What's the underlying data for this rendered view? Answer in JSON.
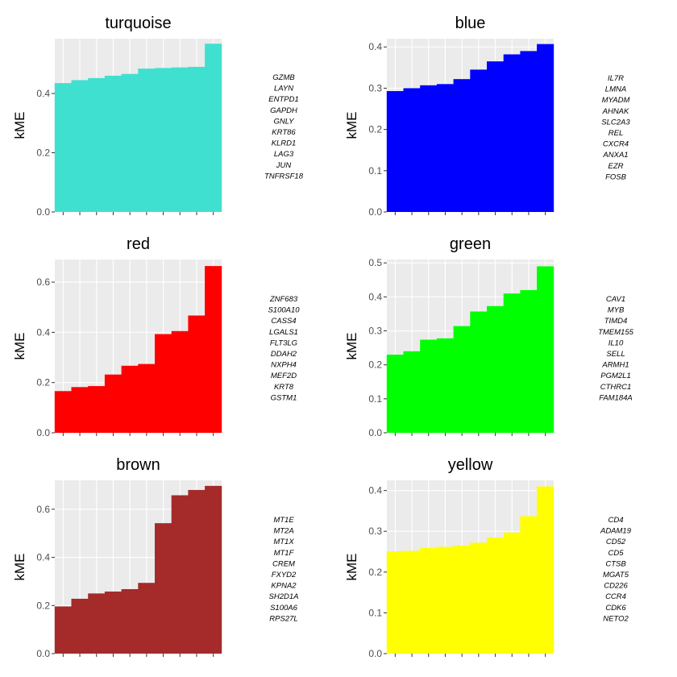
{
  "chart_data": [
    {
      "type": "bar",
      "title": "turquoise",
      "ylabel": "kME",
      "color": "#40E0D0",
      "ylim": [
        0,
        0.585
      ],
      "yticks": [
        0.0,
        0.2,
        0.4
      ],
      "ytick_labels": [
        "0.0",
        "0.2",
        "0.4"
      ],
      "values": [
        0.435,
        0.445,
        0.452,
        0.46,
        0.466,
        0.484,
        0.486,
        0.488,
        0.49,
        0.568
      ],
      "genes": [
        "GZMB",
        "LAYN",
        "ENTPD1",
        "GAPDH",
        "GNLY",
        "KRT86",
        "KLRD1",
        "LAG3",
        "JUN",
        "TNFRSF18"
      ]
    },
    {
      "type": "bar",
      "title": "blue",
      "ylabel": "kME",
      "color": "#0000FF",
      "ylim": [
        0,
        0.42
      ],
      "yticks": [
        0.0,
        0.1,
        0.2,
        0.3,
        0.4
      ],
      "ytick_labels": [
        "0.0",
        "0.1",
        "0.2",
        "0.3",
        "0.4"
      ],
      "values": [
        0.293,
        0.3,
        0.307,
        0.31,
        0.322,
        0.345,
        0.365,
        0.382,
        0.39,
        0.407
      ],
      "genes": [
        "IL7R",
        "LMNA",
        "MYADM",
        "AHNAK",
        "SLC2A3",
        "REL",
        "CXCR4",
        "ANXA1",
        "EZR",
        "FOSB"
      ]
    },
    {
      "type": "bar",
      "title": "red",
      "ylabel": "kME",
      "color": "#FF0000",
      "ylim": [
        0,
        0.69
      ],
      "yticks": [
        0.0,
        0.2,
        0.4,
        0.6
      ],
      "ytick_labels": [
        "0.0",
        "0.2",
        "0.4",
        "0.6"
      ],
      "values": [
        0.166,
        0.182,
        0.186,
        0.232,
        0.267,
        0.274,
        0.393,
        0.405,
        0.467,
        0.664
      ],
      "genes": [
        "ZNF683",
        "S100A10",
        "CASS4",
        "LGALS1",
        "FLT3LG",
        "DDAH2",
        "NXPH4",
        "MEF2D",
        "KRT8",
        "GSTM1"
      ]
    },
    {
      "type": "bar",
      "title": "green",
      "ylabel": "kME",
      "color": "#00FF00",
      "ylim": [
        0,
        0.51
      ],
      "yticks": [
        0.0,
        0.1,
        0.2,
        0.3,
        0.4,
        0.5
      ],
      "ytick_labels": [
        "0.0",
        "0.1",
        "0.2",
        "0.3",
        "0.4",
        "0.5"
      ],
      "values": [
        0.23,
        0.24,
        0.274,
        0.278,
        0.314,
        0.357,
        0.373,
        0.41,
        0.42,
        0.49
      ],
      "genes": [
        "CAV1",
        "MYB",
        "TIMD4",
        "TMEM155",
        "IL10",
        "SELL",
        "ARMH1",
        "PGM2L1",
        "CTHRC1",
        "FAM184A"
      ]
    },
    {
      "type": "bar",
      "title": "brown",
      "ylabel": "kME",
      "color": "#A52A2A",
      "ylim": [
        0,
        0.72
      ],
      "yticks": [
        0.0,
        0.2,
        0.4,
        0.6
      ],
      "ytick_labels": [
        "0.0",
        "0.2",
        "0.4",
        "0.6"
      ],
      "values": [
        0.196,
        0.228,
        0.25,
        0.258,
        0.268,
        0.294,
        0.542,
        0.658,
        0.68,
        0.697
      ],
      "genes": [
        "MT1E",
        "MT2A",
        "MT1X",
        "MT1F",
        "CREM",
        "FXYD2",
        "KPNA2",
        "SH2D1A",
        "S100A6",
        "RPS27L"
      ]
    },
    {
      "type": "bar",
      "title": "yellow",
      "ylabel": "kME",
      "color": "#FFFF00",
      "ylim": [
        0,
        0.425
      ],
      "yticks": [
        0.0,
        0.1,
        0.2,
        0.3,
        0.4
      ],
      "ytick_labels": [
        "0.0",
        "0.1",
        "0.2",
        "0.3",
        "0.4"
      ],
      "values": [
        0.251,
        0.252,
        0.259,
        0.262,
        0.265,
        0.272,
        0.285,
        0.297,
        0.337,
        0.41
      ],
      "genes": [
        "CD4",
        "ADAM19",
        "CD52",
        "CD5",
        "CTSB",
        "MGAT5",
        "CD226",
        "CCR4",
        "CDK6",
        "NETO2"
      ]
    }
  ]
}
